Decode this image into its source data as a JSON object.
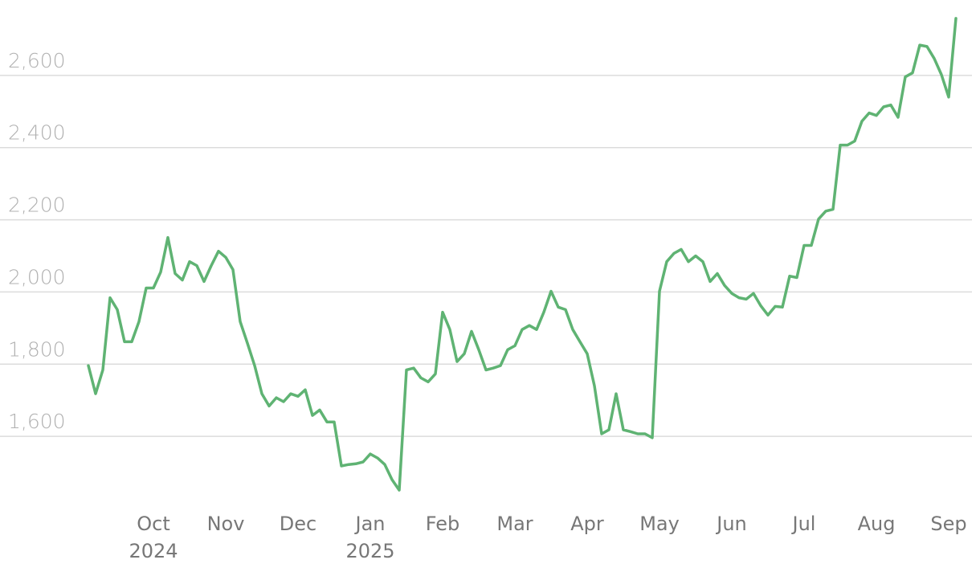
{
  "chart_data": {
    "type": "line",
    "categories": [
      null,
      null,
      null,
      null,
      null,
      null,
      null,
      null,
      null,
      "Oct 2024",
      null,
      null,
      null,
      null,
      null,
      null,
      null,
      null,
      null,
      "Nov",
      null,
      null,
      null,
      null,
      null,
      null,
      null,
      null,
      null,
      "Dec",
      null,
      null,
      null,
      null,
      null,
      null,
      null,
      null,
      null,
      "Jan 2025",
      null,
      null,
      null,
      null,
      null,
      null,
      null,
      null,
      null,
      "Feb",
      null,
      null,
      null,
      null,
      null,
      null,
      null,
      null,
      null,
      "Mar",
      null,
      null,
      null,
      null,
      null,
      null,
      null,
      null,
      null,
      "Apr",
      null,
      null,
      null,
      null,
      null,
      null,
      null,
      null,
      null,
      "May",
      null,
      null,
      null,
      null,
      null,
      null,
      null,
      null,
      null,
      "Jun",
      null,
      null,
      null,
      null,
      null,
      null,
      null,
      null,
      null,
      "Jul",
      null,
      null,
      null,
      null,
      null,
      null,
      null,
      null,
      null,
      "Aug",
      null,
      null,
      null,
      null,
      null,
      null,
      null,
      null,
      null,
      "Sep",
      null
    ],
    "values": [
      1796,
      1718,
      1784,
      1984,
      1951,
      1862,
      1862,
      1918,
      2011,
      2011,
      2055,
      2151,
      2051,
      2033,
      2084,
      2073,
      2029,
      2073,
      2113,
      2096,
      2062,
      1918,
      1858,
      1796,
      1718,
      1684,
      1707,
      1696,
      1718,
      1711,
      1729,
      1658,
      1673,
      1640,
      1640,
      1518,
      1522,
      1524,
      1529,
      1551,
      1540,
      1522,
      1480,
      1451,
      1784,
      1789,
      1762,
      1751,
      1773,
      1944,
      1896,
      1807,
      1829,
      1891,
      1840,
      1784,
      1789,
      1796,
      1840,
      1851,
      1896,
      1907,
      1896,
      1944,
      2002,
      1958,
      1951,
      1896,
      1862,
      1829,
      1740,
      1607,
      1618,
      1718,
      1618,
      1613,
      1607,
      1607,
      1596,
      2002,
      2084,
      2107,
      2118,
      2084,
      2100,
      2084,
      2029,
      2051,
      2018,
      1996,
      1984,
      1980,
      1996,
      1962,
      1936,
      1960,
      1958,
      2044,
      2040,
      2129,
      2129,
      2202,
      2224,
      2229,
      2407,
      2407,
      2418,
      2473,
      2496,
      2489,
      2513,
      2518,
      2484,
      2596,
      2607,
      2684,
      2680,
      2647,
      2602,
      2540,
      2758
    ],
    "color": "#5fb373",
    "ylim": [
      1420,
      2760
    ],
    "yticks": [
      {
        "value": 1600,
        "label": "1,600"
      },
      {
        "value": 1800,
        "label": "1,800"
      },
      {
        "value": 2000,
        "label": "2,000"
      },
      {
        "value": 2200,
        "label": "2,200"
      },
      {
        "value": 2400,
        "label": "2,400"
      },
      {
        "value": 2600,
        "label": "2,600"
      }
    ],
    "grid": true
  }
}
